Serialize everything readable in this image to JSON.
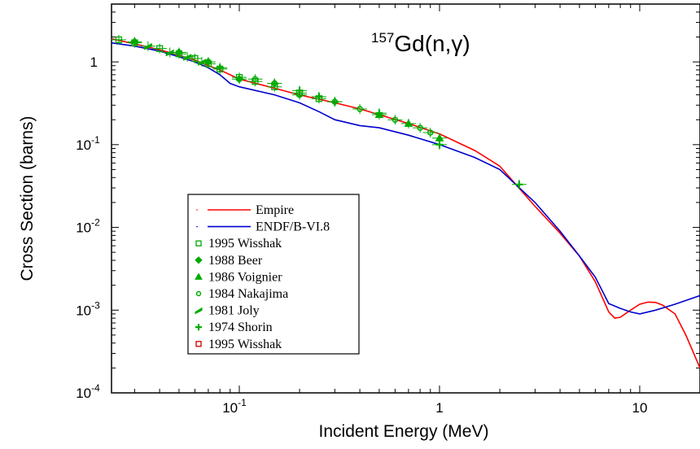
{
  "chart_data": {
    "type": "line",
    "title": "Gd(n,γ)",
    "title_superscript": "157",
    "xlabel": "Incident Energy (MeV)",
    "ylabel": "Cross Section (barns)",
    "xscale": "log",
    "yscale": "log",
    "xlim": [
      0.023,
      20
    ],
    "ylim": [
      0.0001,
      5
    ],
    "xticks": [
      {
        "value": 0.1,
        "label": "10",
        "exp": "-1"
      },
      {
        "value": 1,
        "label": "1",
        "exp": ""
      },
      {
        "value": 10,
        "label": "10",
        "exp": ""
      }
    ],
    "yticks": [
      {
        "value": 1,
        "label": "1",
        "exp": ""
      },
      {
        "value": 0.1,
        "label": "10",
        "exp": "-1"
      },
      {
        "value": 0.01,
        "label": "10",
        "exp": "-2"
      },
      {
        "value": 0.001,
        "label": "10",
        "exp": "-3"
      },
      {
        "value": 0.0001,
        "label": "10",
        "exp": "-4"
      }
    ],
    "legend_position": "lower-left",
    "series": [
      {
        "name": "Empire",
        "kind": "line",
        "color": "#ff0000",
        "x": [
          0.023,
          0.03,
          0.04,
          0.05,
          0.06,
          0.07,
          0.08,
          0.1,
          0.15,
          0.2,
          0.3,
          0.4,
          0.5,
          0.7,
          1.0,
          1.5,
          2.0,
          3.0,
          4.0,
          5.0,
          6.0,
          7.0,
          7.5,
          8.0,
          9.0,
          10.0,
          11.0,
          12.0,
          13.0,
          15.0,
          17.0,
          20.0
        ],
        "y": [
          1.9,
          1.65,
          1.4,
          1.2,
          1.05,
          0.9,
          0.8,
          0.62,
          0.48,
          0.4,
          0.32,
          0.27,
          0.23,
          0.18,
          0.135,
          0.085,
          0.055,
          0.018,
          0.0085,
          0.0045,
          0.0022,
          0.00095,
          0.0008,
          0.00082,
          0.001,
          0.00118,
          0.00125,
          0.00124,
          0.00115,
          0.0009,
          0.0005,
          0.0002
        ]
      },
      {
        "name": "ENDF/B-VI.8",
        "kind": "line",
        "color": "#0000cc",
        "x": [
          0.023,
          0.03,
          0.04,
          0.05,
          0.06,
          0.07,
          0.08,
          0.09,
          0.1,
          0.15,
          0.2,
          0.25,
          0.3,
          0.4,
          0.5,
          0.7,
          1.0,
          1.5,
          2.0,
          3.0,
          4.0,
          5.0,
          6.0,
          7.0,
          8.0,
          9.0,
          10.0,
          12.0,
          15.0,
          20.0
        ],
        "y": [
          1.7,
          1.55,
          1.35,
          1.15,
          1.0,
          0.85,
          0.7,
          0.55,
          0.5,
          0.4,
          0.32,
          0.25,
          0.2,
          0.17,
          0.16,
          0.13,
          0.1,
          0.07,
          0.05,
          0.02,
          0.009,
          0.0045,
          0.0025,
          0.0012,
          0.00105,
          0.00095,
          0.0009,
          0.001,
          0.00118,
          0.0015
        ]
      },
      {
        "name": "1995 Wisshak",
        "kind": "points",
        "marker": "square",
        "color": "#00aa00",
        "x": [
          0.025,
          0.03,
          0.04,
          0.05,
          0.06,
          0.07,
          0.08,
          0.1,
          0.12,
          0.15,
          0.2,
          0.25
        ],
        "y": [
          1.85,
          1.7,
          1.45,
          1.25,
          1.1,
          0.95,
          0.82,
          0.65,
          0.58,
          0.5,
          0.42,
          0.36
        ]
      },
      {
        "name": "1988 Beer",
        "kind": "points",
        "marker": "diamond",
        "color": "#00aa00",
        "x": [
          0.03,
          0.05,
          0.07,
          0.1
        ],
        "y": [
          1.75,
          1.3,
          1.0,
          0.62
        ]
      },
      {
        "name": "1986 Voignier",
        "kind": "points",
        "marker": "triangle",
        "color": "#00aa00",
        "x": [
          0.5,
          0.7,
          1.0
        ],
        "y": [
          0.23,
          0.18,
          0.12
        ]
      },
      {
        "name": "1984 Nakajima",
        "kind": "points",
        "marker": "circle",
        "color": "#00aa00",
        "x": [
          0.12,
          0.15,
          0.2,
          0.3,
          0.4,
          0.6,
          0.8,
          0.9
        ],
        "y": [
          0.62,
          0.55,
          0.4,
          0.33,
          0.27,
          0.2,
          0.16,
          0.14
        ]
      },
      {
        "name": "1981 Joly",
        "kind": "points",
        "marker": "bar",
        "color": "#00aa00",
        "x": [
          0.035,
          0.045,
          0.055,
          0.065
        ],
        "y": [
          1.55,
          1.3,
          1.15,
          1.0
        ]
      },
      {
        "name": "1974 Shorin",
        "kind": "points",
        "marker": "plus",
        "color": "#00aa00",
        "x": [
          0.08,
          0.15,
          0.2,
          0.25,
          0.3,
          0.5,
          1.0,
          2.5
        ],
        "y": [
          0.85,
          0.55,
          0.45,
          0.38,
          0.33,
          0.24,
          0.1,
          0.033
        ]
      },
      {
        "name": "1995 Wisshak",
        "kind": "points",
        "marker": "square",
        "color": "#cc0000",
        "x": [],
        "y": []
      }
    ]
  }
}
